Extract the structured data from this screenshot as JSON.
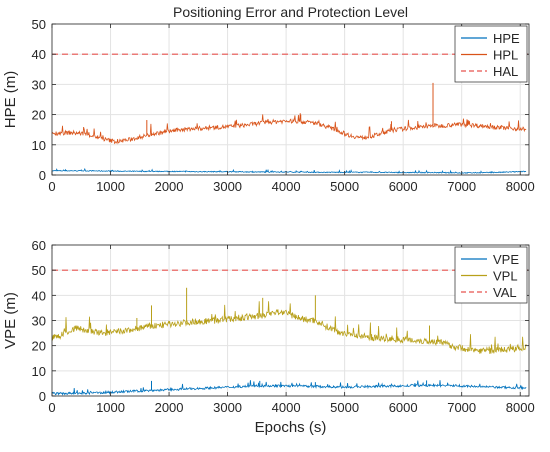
{
  "chart_data": [
    {
      "type": "line",
      "title": "Positioning Error and Protection Level",
      "xlabel": "",
      "ylabel": "HPE (m)",
      "xlim": [
        0,
        8150
      ],
      "ylim": [
        0,
        50
      ],
      "xticks": [
        0,
        1000,
        2000,
        3000,
        4000,
        5000,
        6000,
        7000,
        8000
      ],
      "yticks": [
        0,
        10,
        20,
        30,
        40,
        50
      ],
      "grid": true,
      "legend_position": "top-right",
      "series": [
        {
          "name": "HPE",
          "color": "#0072BD",
          "points": [
            [
              0,
              1.4
            ],
            [
              500,
              1.4
            ],
            [
              1000,
              1.3
            ],
            [
              1500,
              1.2
            ],
            [
              2000,
              1.2
            ],
            [
              2500,
              1.1
            ],
            [
              3000,
              1.1
            ],
            [
              3500,
              1.0
            ],
            [
              4000,
              1.0
            ],
            [
              4500,
              0.9
            ],
            [
              5000,
              0.9
            ],
            [
              5500,
              0.9
            ],
            [
              6000,
              0.8
            ],
            [
              6500,
              0.8
            ],
            [
              7000,
              0.7
            ],
            [
              7500,
              0.8
            ],
            [
              8000,
              1.1
            ],
            [
              8100,
              1.2
            ]
          ]
        },
        {
          "name": "HPL",
          "color": "#D95319",
          "points": [
            [
              0,
              13.8
            ],
            [
              300,
              14.0
            ],
            [
              500,
              13.8
            ],
            [
              700,
              13.0
            ],
            [
              900,
              11.8
            ],
            [
              1100,
              11.0
            ],
            [
              1300,
              11.6
            ],
            [
              1500,
              12.5
            ],
            [
              1700,
              13.5
            ],
            [
              2000,
              14.5
            ],
            [
              2300,
              15.2
            ],
            [
              2600,
              15.5
            ],
            [
              3000,
              16.0
            ],
            [
              3300,
              16.5
            ],
            [
              3600,
              17.3
            ],
            [
              3900,
              17.8
            ],
            [
              4200,
              17.8
            ],
            [
              4500,
              17.2
            ],
            [
              4700,
              16.0
            ],
            [
              4900,
              14.5
            ],
            [
              5100,
              13.0
            ],
            [
              5300,
              12.3
            ],
            [
              5500,
              13.0
            ],
            [
              5800,
              14.8
            ],
            [
              6100,
              15.5
            ],
            [
              6400,
              16.0
            ],
            [
              6500,
              16.5
            ],
            [
              6600,
              16.2
            ],
            [
              6900,
              16.8
            ],
            [
              7200,
              16.5
            ],
            [
              7500,
              16.0
            ],
            [
              7800,
              15.5
            ],
            [
              8100,
              15.2
            ]
          ],
          "spikes": [
            [
              6510,
              30.5
            ],
            [
              1620,
              18.2
            ],
            [
              4250,
              20.0
            ],
            [
              5800,
              17.8
            ]
          ]
        },
        {
          "name": "HAL",
          "color": "#E8534F",
          "dash": true,
          "points": [
            [
              0,
              40
            ],
            [
              8150,
              40
            ]
          ]
        }
      ]
    },
    {
      "type": "line",
      "title": "",
      "xlabel": "Epochs (s)",
      "ylabel": "VPE (m)",
      "xlim": [
        0,
        8150
      ],
      "ylim": [
        0,
        60
      ],
      "xticks": [
        0,
        1000,
        2000,
        3000,
        4000,
        5000,
        6000,
        7000,
        8000
      ],
      "yticks": [
        0,
        10,
        20,
        30,
        40,
        50,
        60
      ],
      "grid": true,
      "legend_position": "top-right",
      "series": [
        {
          "name": "VPE",
          "color": "#0072BD",
          "points": [
            [
              0,
              1.0
            ],
            [
              500,
              1.0
            ],
            [
              1000,
              1.5
            ],
            [
              1500,
              2.0
            ],
            [
              2000,
              2.5
            ],
            [
              2500,
              3.0
            ],
            [
              3000,
              3.5
            ],
            [
              3500,
              4.0
            ],
            [
              4000,
              4.0
            ],
            [
              4500,
              3.8
            ],
            [
              5000,
              3.5
            ],
            [
              5500,
              3.8
            ],
            [
              6000,
              4.0
            ],
            [
              6500,
              4.2
            ],
            [
              7000,
              4.0
            ],
            [
              7500,
              3.5
            ],
            [
              8100,
              3.2
            ]
          ],
          "spikes": [
            [
              1700,
              6.0
            ],
            [
              3550,
              6.0
            ],
            [
              4500,
              5.5
            ],
            [
              6400,
              6.2
            ]
          ]
        },
        {
          "name": "VPL",
          "color": "#B8A01A",
          "points": [
            [
              0,
              23.0
            ],
            [
              200,
              24.5
            ],
            [
              400,
              27.0
            ],
            [
              600,
              26.0
            ],
            [
              800,
              25.0
            ],
            [
              1000,
              25.2
            ],
            [
              1300,
              26.0
            ],
            [
              1600,
              27.5
            ],
            [
              2000,
              28.5
            ],
            [
              2400,
              29.5
            ],
            [
              2800,
              30.0
            ],
            [
              3200,
              31.0
            ],
            [
              3600,
              32.0
            ],
            [
              3900,
              33.5
            ],
            [
              4100,
              32.0
            ],
            [
              4300,
              30.5
            ],
            [
              4500,
              30.0
            ],
            [
              4700,
              27.5
            ],
            [
              4900,
              25.5
            ],
            [
              5100,
              24.5
            ],
            [
              5400,
              23.5
            ],
            [
              5700,
              22.5
            ],
            [
              6000,
              22.5
            ],
            [
              6300,
              22.0
            ],
            [
              6600,
              21.5
            ],
            [
              6900,
              19.5
            ],
            [
              7200,
              18.2
            ],
            [
              7500,
              18.0
            ],
            [
              7800,
              18.5
            ],
            [
              8100,
              19.5
            ]
          ],
          "spikes": [
            [
              1700,
              36.0
            ],
            [
              2300,
              43.0
            ],
            [
              3600,
              39.0
            ],
            [
              4500,
              40.0
            ],
            [
              6450,
              28.0
            ],
            [
              1450,
              31.0
            ]
          ]
        },
        {
          "name": "VAL",
          "color": "#E8534F",
          "dash": true,
          "points": [
            [
              0,
              50
            ],
            [
              8150,
              50
            ]
          ]
        }
      ]
    }
  ]
}
